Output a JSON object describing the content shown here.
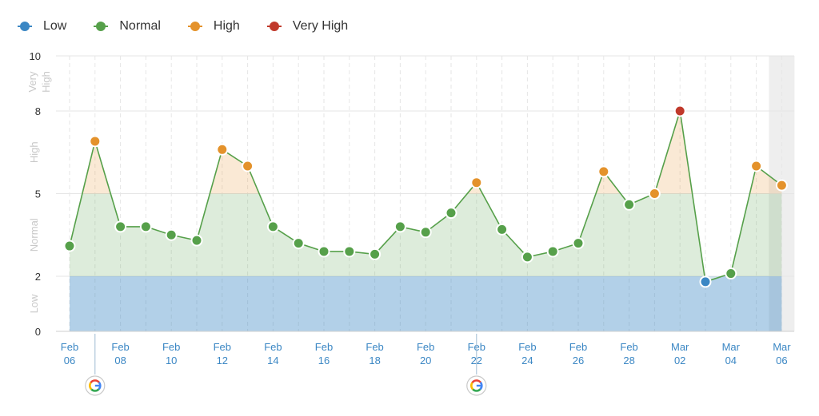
{
  "legend": [
    {
      "label": "Low",
      "color": "#3b87c4"
    },
    {
      "label": "Normal",
      "color": "#56a04a"
    },
    {
      "label": "High",
      "color": "#e4922b"
    },
    {
      "label": "Very High",
      "color": "#c0392b"
    }
  ],
  "chart_data": {
    "type": "line",
    "x": [
      "Feb 06",
      "Feb 07",
      "Feb 08",
      "Feb 09",
      "Feb 10",
      "Feb 11",
      "Feb 12",
      "Feb 13",
      "Feb 14",
      "Feb 15",
      "Feb 16",
      "Feb 17",
      "Feb 18",
      "Feb 19",
      "Feb 20",
      "Feb 21",
      "Feb 22",
      "Feb 23",
      "Feb 24",
      "Feb 25",
      "Feb 26",
      "Feb 27",
      "Feb 28",
      "Mar 01",
      "Mar 02",
      "Mar 03",
      "Mar 04",
      "Mar 05",
      "Mar 06"
    ],
    "values": [
      3.1,
      6.9,
      3.8,
      3.8,
      3.5,
      3.3,
      6.6,
      6.0,
      3.8,
      3.2,
      2.9,
      2.9,
      2.8,
      3.8,
      3.6,
      4.3,
      5.4,
      3.7,
      2.7,
      2.9,
      3.2,
      5.8,
      4.6,
      5.0,
      8.0,
      1.8,
      2.1,
      6.0,
      5.3
    ],
    "categories_levels": [
      "normal",
      "high",
      "normal",
      "normal",
      "normal",
      "normal",
      "high",
      "high",
      "normal",
      "normal",
      "normal",
      "normal",
      "normal",
      "normal",
      "normal",
      "normal",
      "high",
      "normal",
      "normal",
      "normal",
      "normal",
      "high",
      "normal",
      "high",
      "veryhigh",
      "low",
      "normal",
      "high",
      "high"
    ],
    "bands": [
      {
        "name": "Low",
        "from": 0,
        "to": 2,
        "color": "#3b87c4"
      },
      {
        "name": "Normal",
        "from": 2,
        "to": 5,
        "color": "#56a04a"
      },
      {
        "name": "High",
        "from": 5,
        "to": 8,
        "color": "#e4922b"
      },
      {
        "name": "Very High",
        "from": 8,
        "to": 10,
        "color": "#c0392b"
      }
    ],
    "ylim": [
      0,
      10
    ],
    "y_ticks": [
      0,
      2,
      5,
      8,
      10
    ],
    "x_tick_labels": [
      {
        "index": 0,
        "month": "Feb",
        "day": "06"
      },
      {
        "index": 2,
        "month": "Feb",
        "day": "08"
      },
      {
        "index": 4,
        "month": "Feb",
        "day": "10"
      },
      {
        "index": 6,
        "month": "Feb",
        "day": "12"
      },
      {
        "index": 8,
        "month": "Feb",
        "day": "14"
      },
      {
        "index": 10,
        "month": "Feb",
        "day": "16"
      },
      {
        "index": 12,
        "month": "Feb",
        "day": "18"
      },
      {
        "index": 14,
        "month": "Feb",
        "day": "20"
      },
      {
        "index": 16,
        "month": "Feb",
        "day": "22"
      },
      {
        "index": 18,
        "month": "Feb",
        "day": "24"
      },
      {
        "index": 20,
        "month": "Feb",
        "day": "26"
      },
      {
        "index": 22,
        "month": "Feb",
        "day": "28"
      },
      {
        "index": 24,
        "month": "Mar",
        "day": "02"
      },
      {
        "index": 26,
        "month": "Mar",
        "day": "04"
      },
      {
        "index": 28,
        "month": "Mar",
        "day": "06"
      }
    ],
    "google_markers": [
      1,
      16
    ],
    "google_letter": "G",
    "shaded_last_index": 28,
    "grid": true,
    "legend_position": "top-left",
    "colors": {
      "line": "#56a04a",
      "low": "#3b87c4",
      "normal": "#56a04a",
      "high": "#e4922b",
      "veryhigh": "#c0392b",
      "axis_text": "#333333",
      "date_text": "#3b87c4",
      "band_label": "#c8c8c8",
      "grid": "#e6e6e6"
    }
  }
}
